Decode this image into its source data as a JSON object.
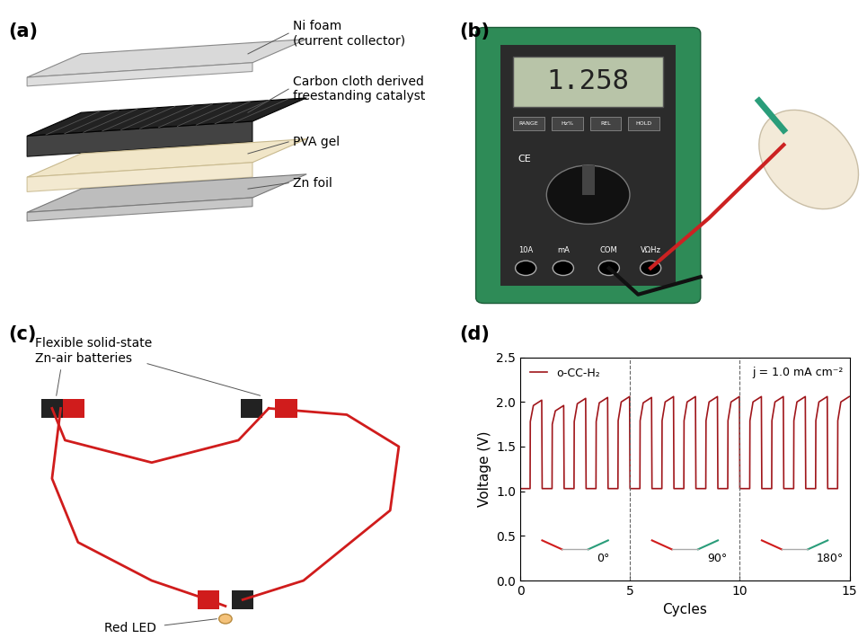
{
  "panels": {
    "a": {
      "label": "(a)",
      "layers": [
        "Ni foam\n(current collector)",
        "Carbon cloth derived\nfreestanding catalyst",
        "PVA gel",
        "Zn foil"
      ]
    },
    "b": {
      "label": "(b)",
      "display": "1.258",
      "buttons": [
        "RANGE",
        "Hz%",
        "REL",
        "HOLD"
      ],
      "markings": [
        "CE",
        "10A",
        "mA",
        "COM",
        "VΩHz"
      ]
    },
    "c": {
      "label": "(c)",
      "batteries": "Flexible solid-state\nZn-air batteries",
      "led": "Red LED"
    },
    "d": {
      "label": "(d)"
    }
  },
  "chart_data": {
    "type": "line",
    "x_label": "Cycles",
    "y_label": "Voltage (V)",
    "xlim": [
      0,
      15
    ],
    "ylim": [
      0,
      2.5
    ],
    "xticks": [
      0,
      5,
      10,
      15
    ],
    "yticks": [
      0.0,
      0.5,
      1.0,
      1.5,
      2.0,
      2.5
    ],
    "legend": "upper left",
    "annotation": "j = 1.0 mA cm⁻²",
    "dividers": [
      5,
      10
    ],
    "bending_angles": [
      "0°",
      "90°",
      "180°"
    ],
    "x": [
      0,
      0.45,
      0.46,
      0.6,
      0.98,
      1,
      1.45,
      1.46,
      1.6,
      1.98,
      2,
      2.45,
      2.46,
      2.6,
      2.98,
      3,
      3.45,
      3.46,
      3.6,
      3.98,
      4,
      4.45,
      4.46,
      4.6,
      4.98,
      5,
      5.45,
      5.46,
      5.6,
      5.98,
      6,
      6.45,
      6.46,
      6.6,
      6.98,
      7,
      7.45,
      7.46,
      7.6,
      7.98,
      8,
      8.45,
      8.46,
      8.6,
      8.98,
      9,
      9.45,
      9.46,
      9.6,
      9.98,
      10,
      10.45,
      10.46,
      10.6,
      10.98,
      11,
      11.45,
      11.46,
      11.6,
      11.98,
      12,
      12.45,
      12.46,
      12.6,
      12.98,
      13,
      13.45,
      13.46,
      13.6,
      13.98,
      14,
      14.45,
      14.46,
      14.6,
      14.98
    ],
    "series": [
      {
        "name": "o-CC-H₂",
        "color": "#a0161b",
        "values": [
          1.03,
          1.03,
          1.78,
          1.96,
          2.02,
          1.03,
          1.03,
          1.75,
          1.9,
          1.96,
          1.03,
          1.03,
          1.78,
          1.98,
          2.04,
          1.03,
          1.03,
          1.78,
          1.99,
          2.05,
          1.03,
          1.03,
          1.79,
          2.0,
          2.06,
          1.03,
          1.03,
          1.79,
          1.99,
          2.05,
          1.03,
          1.03,
          1.79,
          2.0,
          2.06,
          1.03,
          1.03,
          1.79,
          2.0,
          2.06,
          1.03,
          1.03,
          1.79,
          2.0,
          2.06,
          1.03,
          1.03,
          1.79,
          2.0,
          2.06,
          1.03,
          1.03,
          1.79,
          2.0,
          2.06,
          1.03,
          1.03,
          1.79,
          2.0,
          2.06,
          1.03,
          1.03,
          1.79,
          2.0,
          2.06,
          1.03,
          1.03,
          1.79,
          2.0,
          2.06,
          1.03,
          1.03,
          1.79,
          2.0,
          2.06
        ]
      }
    ]
  }
}
